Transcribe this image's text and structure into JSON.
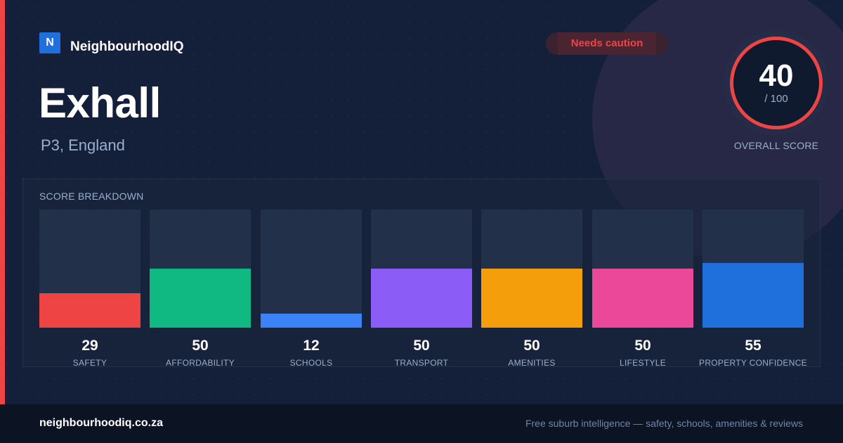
{
  "brand": {
    "logo_letter": "N",
    "name": "NeighbourhoodIQ"
  },
  "location": {
    "name": "Exhall",
    "region": "P3, England"
  },
  "status_badge": {
    "label": "Needs caution",
    "color": "#ef4444"
  },
  "overall_score": {
    "value": "40",
    "max": "/ 100",
    "caption": "OVERALL SCORE",
    "ring_color": "#ef4444"
  },
  "breakdown": {
    "title": "SCORE BREAKDOWN",
    "max": 100,
    "items": [
      {
        "label": "SAFETY",
        "value": 29,
        "color": "#ef4444"
      },
      {
        "label": "AFFORDABILITY",
        "value": 50,
        "color": "#10b981"
      },
      {
        "label": "SCHOOLS",
        "value": 12,
        "color": "#3b82f6"
      },
      {
        "label": "TRANSPORT",
        "value": 50,
        "color": "#8b5cf6"
      },
      {
        "label": "AMENITIES",
        "value": 50,
        "color": "#f59e0b"
      },
      {
        "label": "LIFESTYLE",
        "value": 50,
        "color": "#ec4899"
      },
      {
        "label": "PROPERTY CONFIDENCE",
        "value": 55,
        "color": "#1f6fdc"
      }
    ]
  },
  "footer": {
    "url": "neighbourhoodiq.co.za",
    "tagline": "Free suburb intelligence — safety, schools, amenities & reviews"
  }
}
